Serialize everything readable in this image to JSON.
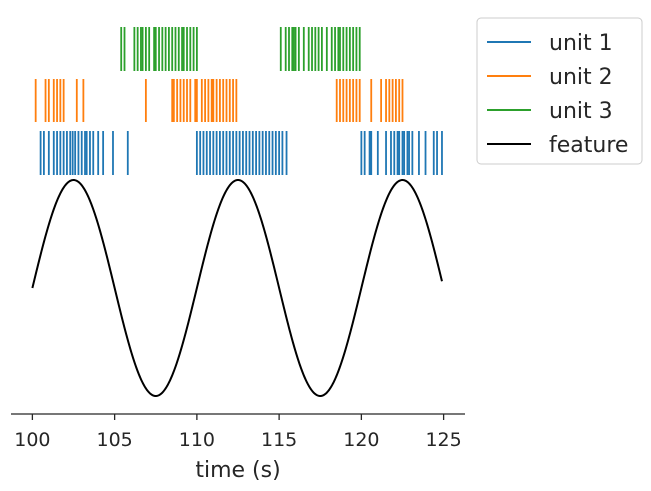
{
  "chart_data": {
    "type": "line",
    "xlabel": "time (s)",
    "ylabel": "",
    "xlim": [
      98.7,
      126.3
    ],
    "xticks": [
      100,
      105,
      110,
      115,
      120,
      125
    ],
    "xtick_labels": [
      "100",
      "105",
      "110",
      "115",
      "120",
      "125"
    ],
    "grid": false,
    "legend_position": "outside-top-right",
    "feature": {
      "name": "feature",
      "color": "#000000",
      "x_start": 100,
      "x_end": 124.9,
      "period": 10,
      "peaks": [
        102.5,
        112.5,
        122.5
      ],
      "troughs": [
        107.5,
        117.5
      ]
    },
    "units": [
      {
        "name": "unit 1",
        "color": "#1f77b4",
        "spikes": [
          100.5,
          100.7,
          101.0,
          101.3,
          101.5,
          101.7,
          101.9,
          102.1,
          102.3,
          102.45,
          102.6,
          102.8,
          103.0,
          103.2,
          103.3,
          103.5,
          103.7,
          104.0,
          104.3,
          104.9,
          105.8,
          110.0,
          110.2,
          110.4,
          110.6,
          110.8,
          111.0,
          111.2,
          111.4,
          111.6,
          111.8,
          112.0,
          112.2,
          112.4,
          112.6,
          112.8,
          113.0,
          113.2,
          113.4,
          113.6,
          113.8,
          114.0,
          114.2,
          114.4,
          114.6,
          114.8,
          115.0,
          115.2,
          115.45,
          120.0,
          120.2,
          120.5,
          120.6,
          121.0,
          121.5,
          121.8,
          122.0,
          122.2,
          122.3,
          122.5,
          122.6,
          122.8,
          122.9,
          123.1,
          123.5,
          123.9,
          124.4,
          124.6,
          124.9
        ]
      },
      {
        "name": "unit 2",
        "color": "#ff7f0e",
        "spikes": [
          100.2,
          100.8,
          101.0,
          101.3,
          101.5,
          101.7,
          101.9,
          102.7,
          103.1,
          106.9,
          108.5,
          108.6,
          108.8,
          109.0,
          109.2,
          109.4,
          109.6,
          109.9,
          110.0,
          110.3,
          110.5,
          110.7,
          110.9,
          111.0,
          111.2,
          111.4,
          111.6,
          111.8,
          112.0,
          112.2,
          112.4,
          118.5,
          118.7,
          118.9,
          119.1,
          119.3,
          119.5,
          119.7,
          119.9,
          120.6,
          121.2,
          121.5,
          121.7,
          121.9,
          122.1,
          122.3,
          122.5
        ]
      },
      {
        "name": "unit 3",
        "color": "#2ca02c",
        "spikes": [
          105.4,
          105.6,
          106.2,
          106.4,
          106.6,
          106.7,
          106.9,
          107.1,
          107.4,
          107.5,
          107.7,
          107.9,
          108.1,
          108.3,
          108.5,
          108.7,
          108.9,
          109.1,
          109.2,
          109.4,
          109.6,
          109.8,
          110.0,
          115.1,
          115.4,
          115.6,
          115.8,
          115.9,
          116.0,
          116.2,
          116.5,
          116.8,
          117.0,
          117.2,
          117.4,
          117.6,
          117.9,
          118.2,
          118.4,
          118.6,
          118.7,
          118.9,
          119.1,
          119.3,
          119.5,
          119.7,
          119.9
        ]
      }
    ]
  },
  "legend": {
    "items": [
      {
        "label": "unit 1",
        "color": "#1f77b4"
      },
      {
        "label": "unit 2",
        "color": "#ff7f0e"
      },
      {
        "label": "unit 3",
        "color": "#2ca02c"
      },
      {
        "label": "feature",
        "color": "#000000"
      }
    ]
  }
}
